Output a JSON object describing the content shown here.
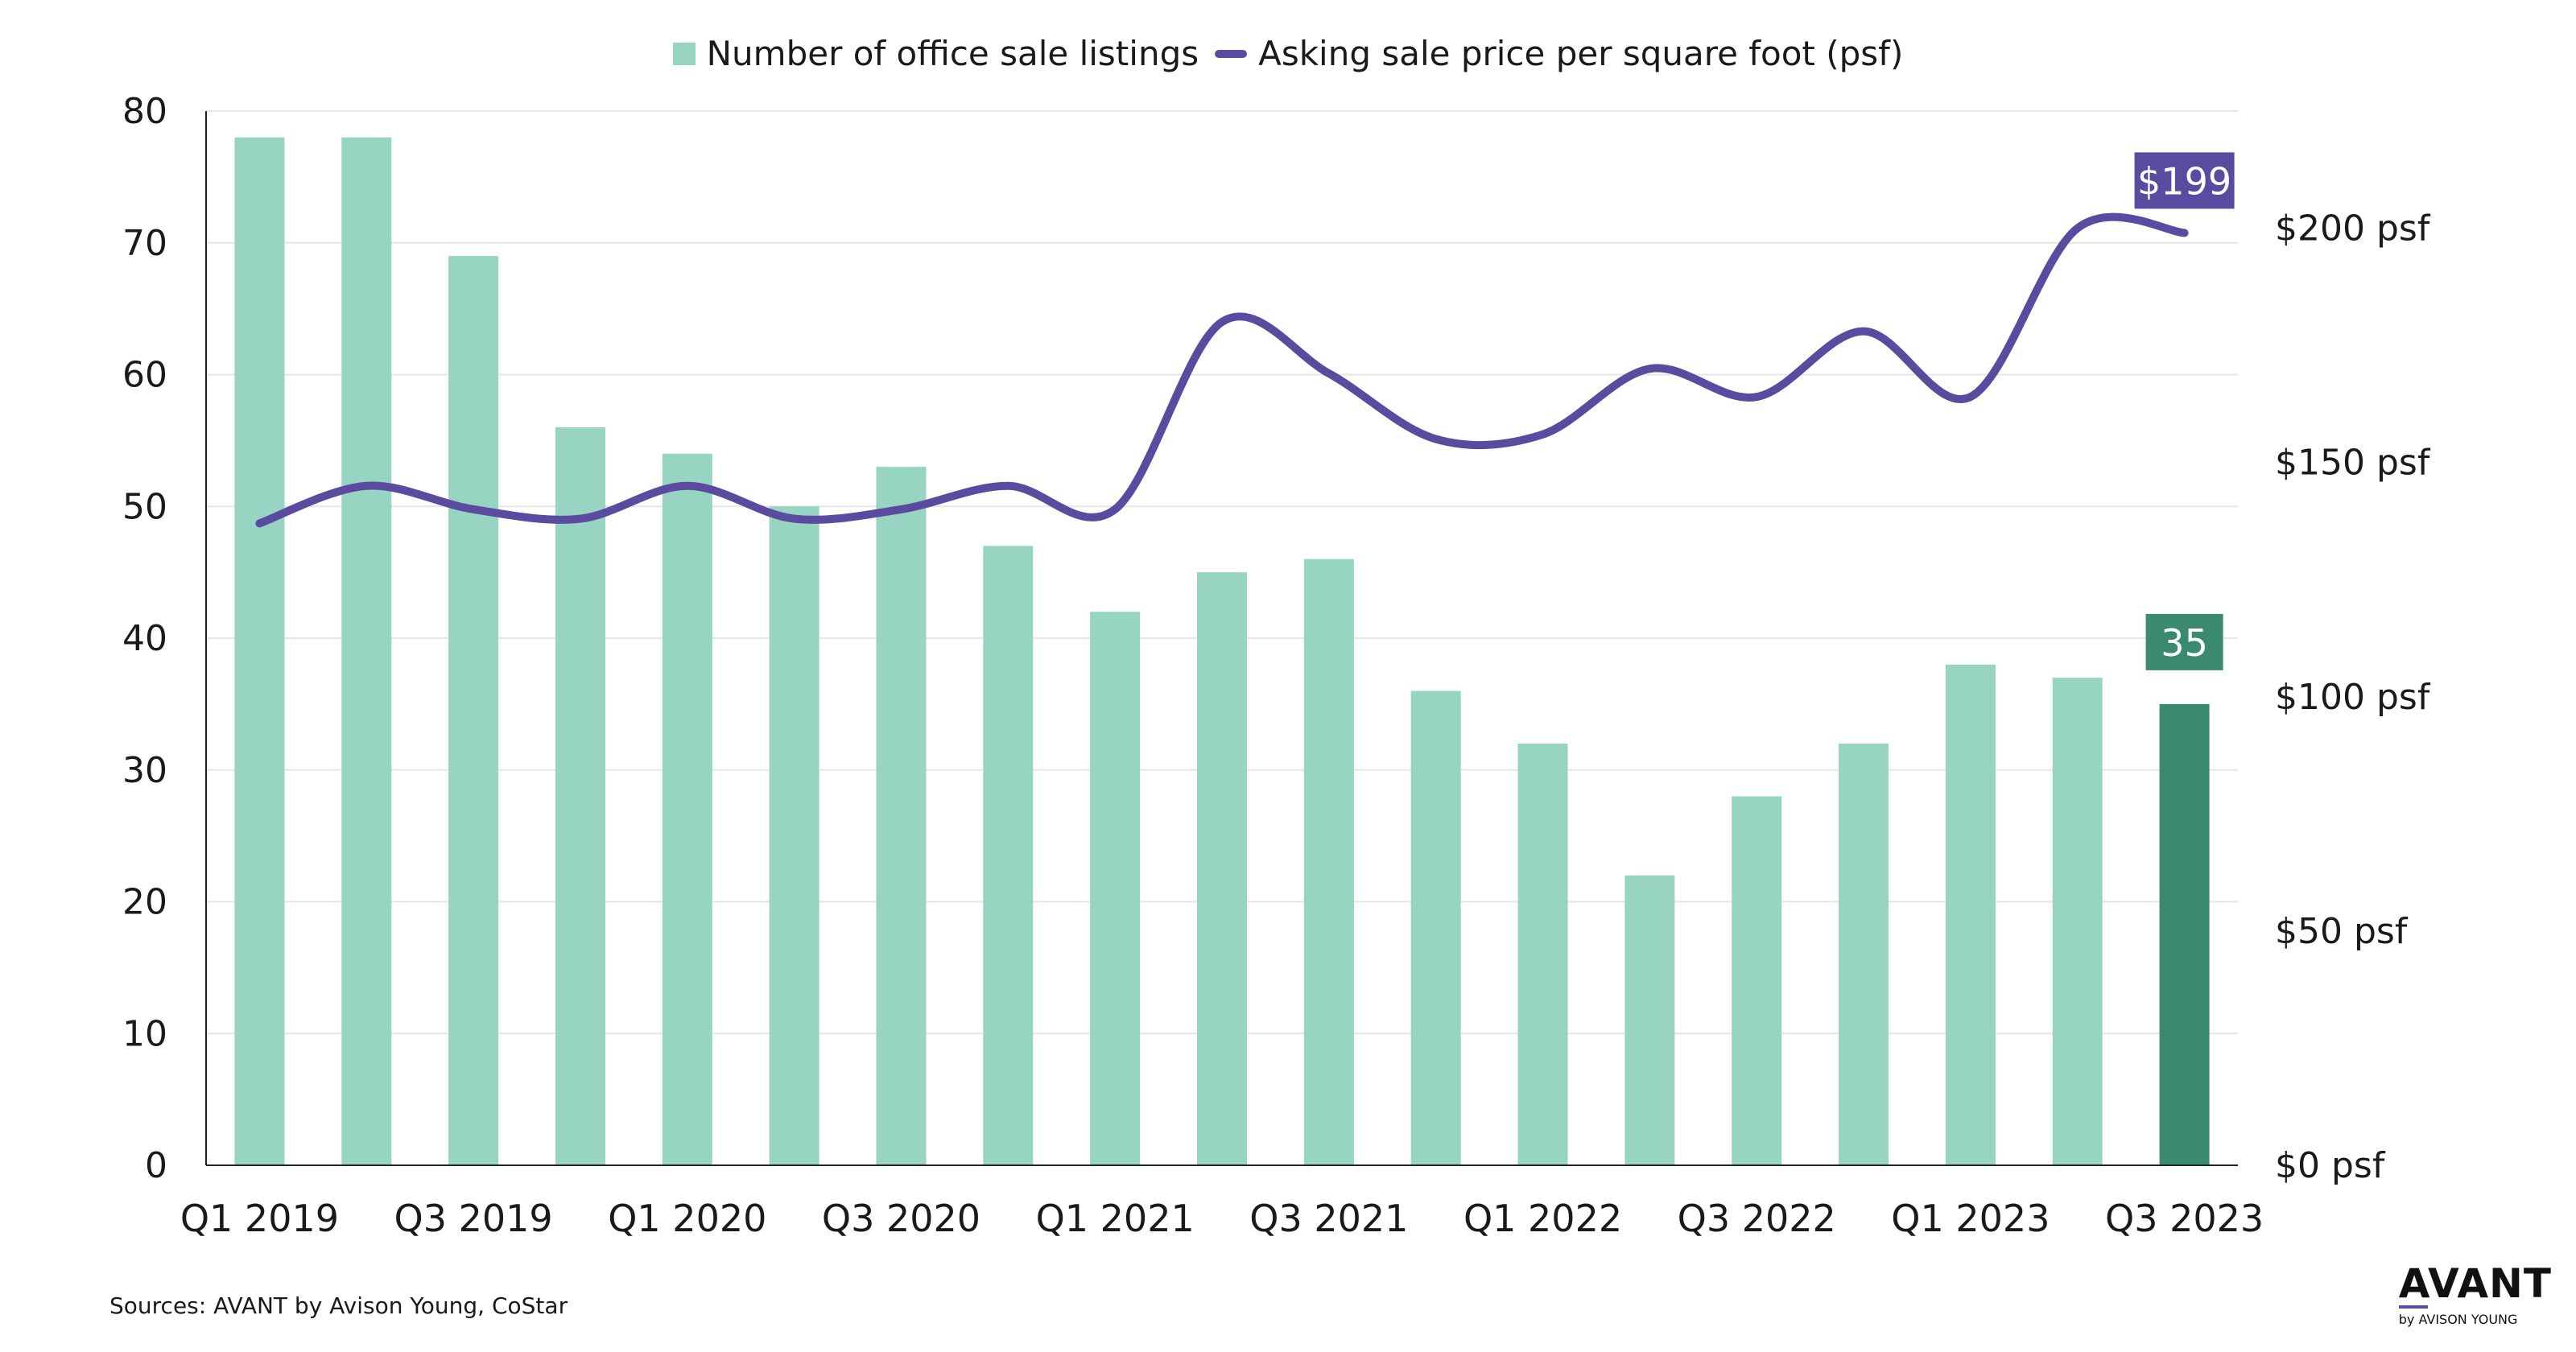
{
  "legend": {
    "bars_label": "Number of office sale listings",
    "line_label": "Asking sale price per square foot (psf)"
  },
  "source": "Sources: AVANT by Avison Young, CoStar",
  "brand": {
    "main": "AVANT",
    "sub": "by AVISON YOUNG"
  },
  "colors": {
    "bar": "#97d4c1",
    "bar_highlight": "#3a8a6f",
    "line": "#5a4aa0",
    "grid": "#e6e6e6",
    "axis": "#222222"
  },
  "chart_data": {
    "type": "bar+line",
    "categories": [
      "Q1 2019",
      "Q2 2019",
      "Q3 2019",
      "Q4 2019",
      "Q1 2020",
      "Q2 2020",
      "Q3 2020",
      "Q4 2020",
      "Q1 2021",
      "Q2 2021",
      "Q3 2021",
      "Q4 2021",
      "Q1 2022",
      "Q2 2022",
      "Q3 2022",
      "Q4 2022",
      "Q1 2023",
      "Q2 2023",
      "Q3 2023"
    ],
    "x_tick_labels": [
      "Q1 2019",
      "",
      "Q3 2019",
      "",
      "Q1 2020",
      "",
      "Q3 2020",
      "",
      "Q1 2021",
      "",
      "Q3 2021",
      "",
      "Q1 2022",
      "",
      "Q3 2022",
      "",
      "Q1 2023",
      "",
      "Q3 2023"
    ],
    "series": [
      {
        "name": "Number of office sale listings",
        "type": "bar",
        "axis": "left",
        "values": [
          78,
          78,
          69,
          56,
          54,
          50,
          53,
          47,
          42,
          45,
          46,
          36,
          32,
          22,
          28,
          32,
          38,
          37,
          35
        ]
      },
      {
        "name": "Asking sale price per square foot (psf)",
        "type": "line",
        "axis": "right",
        "values": [
          137,
          145,
          140,
          138,
          145,
          138,
          140,
          145,
          140,
          180,
          169,
          155,
          156,
          170,
          164,
          178,
          164,
          200,
          199
        ]
      }
    ],
    "left_axis": {
      "ylim": [
        0,
        80
      ],
      "ticks": [
        0,
        10,
        20,
        30,
        40,
        50,
        60,
        70,
        80
      ],
      "tick_labels": [
        "0",
        "10",
        "20",
        "30",
        "40",
        "50",
        "60",
        "70",
        "80"
      ]
    },
    "right_axis": {
      "ylim": [
        0,
        225
      ],
      "ticks": [
        0,
        50,
        100,
        150,
        200
      ],
      "tick_labels": [
        "$0 psf",
        "$50 psf",
        "$100 psf",
        "$150 psf",
        "$200 psf"
      ]
    },
    "annotations": [
      {
        "series": "line",
        "index": 18,
        "text": "$199"
      },
      {
        "series": "bar",
        "index": 18,
        "text": "35"
      }
    ],
    "highlight_index": 18,
    "grid": true,
    "legend_position": "top"
  }
}
